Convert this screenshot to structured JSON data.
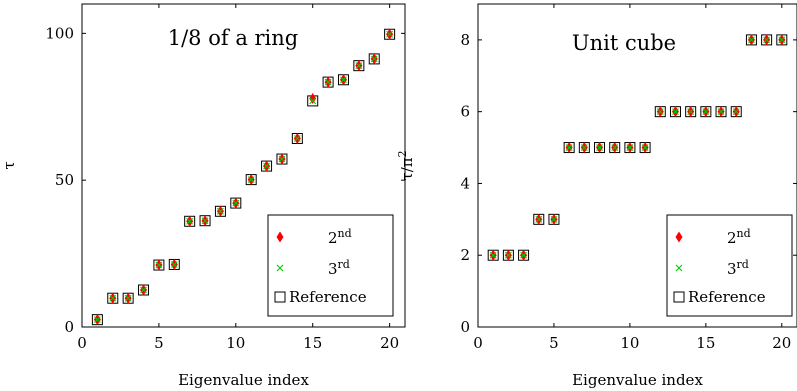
{
  "chart_data": [
    {
      "type": "scatter",
      "title": "1/8 of a ring",
      "xlabel": "Eigenvalue index",
      "ylabel": "τ",
      "ylabel_parts": {
        "base": "τ",
        "sup": ""
      },
      "xlim": [
        0,
        21
      ],
      "ylim": [
        0,
        110
      ],
      "xticks": [
        0,
        5,
        10,
        15,
        20
      ],
      "yticks": [
        0,
        50,
        100
      ],
      "grid": false,
      "legend_position": "bottom-right",
      "x": [
        1,
        2,
        3,
        4,
        5,
        6,
        7,
        8,
        9,
        10,
        11,
        12,
        13,
        14,
        15,
        16,
        17,
        18,
        19,
        20
      ],
      "series": [
        {
          "name": "2nd",
          "name_base": "2",
          "name_sup": "nd",
          "marker": "diamond",
          "color": "#ff0000",
          "values": [
            2.5,
            9.8,
            9.8,
            12.6,
            21.1,
            21.3,
            36.0,
            36.2,
            39.4,
            42.2,
            50.2,
            54.8,
            57.2,
            64.2,
            77.8,
            83.4,
            84.2,
            89.0,
            91.3,
            99.7
          ]
        },
        {
          "name": "3rd",
          "name_base": "3",
          "name_sup": "rd",
          "marker": "cross",
          "color": "#00cc00",
          "values": [
            2.5,
            9.8,
            9.8,
            12.6,
            21.1,
            21.3,
            36.0,
            36.2,
            39.4,
            42.2,
            50.2,
            54.8,
            57.2,
            64.2,
            77.0,
            83.4,
            84.2,
            89.0,
            91.3,
            99.7
          ]
        },
        {
          "name": "Reference",
          "marker": "square",
          "color": "#000000",
          "values": [
            2.5,
            9.8,
            9.8,
            12.6,
            21.1,
            21.3,
            36.0,
            36.2,
            39.4,
            42.2,
            50.2,
            54.8,
            57.2,
            64.2,
            77.0,
            83.4,
            84.2,
            89.0,
            91.3,
            99.7
          ]
        }
      ]
    },
    {
      "type": "scatter",
      "title": "Unit cube",
      "xlabel": "Eigenvalue index",
      "ylabel": "τ/π2",
      "ylabel_parts": {
        "base": "τ/π",
        "sup": "2"
      },
      "xlim": [
        0,
        21
      ],
      "ylim": [
        0,
        9
      ],
      "xticks": [
        0,
        5,
        10,
        15,
        20
      ],
      "yticks": [
        0,
        2,
        4,
        6,
        8
      ],
      "grid": false,
      "legend_position": "bottom-right",
      "x": [
        1,
        2,
        3,
        4,
        5,
        6,
        7,
        8,
        9,
        10,
        11,
        12,
        13,
        14,
        15,
        16,
        17,
        18,
        19,
        20
      ],
      "series": [
        {
          "name": "2nd",
          "name_base": "2",
          "name_sup": "nd",
          "marker": "diamond",
          "color": "#ff0000",
          "values": [
            2,
            2,
            2,
            3,
            3,
            5,
            5,
            5,
            5,
            5,
            5,
            6,
            6,
            6,
            6,
            6,
            6,
            8,
            8,
            8
          ]
        },
        {
          "name": "3rd",
          "name_base": "3",
          "name_sup": "rd",
          "marker": "cross",
          "color": "#00cc00",
          "values": [
            2,
            2,
            2,
            3,
            3,
            5,
            5,
            5,
            5,
            5,
            5,
            6,
            6,
            6,
            6,
            6,
            6,
            8,
            8,
            8
          ]
        },
        {
          "name": "Reference",
          "marker": "square",
          "color": "#000000",
          "values": [
            2,
            2,
            2,
            3,
            3,
            5,
            5,
            5,
            5,
            5,
            5,
            6,
            6,
            6,
            6,
            6,
            6,
            8,
            8,
            8
          ]
        }
      ]
    }
  ]
}
